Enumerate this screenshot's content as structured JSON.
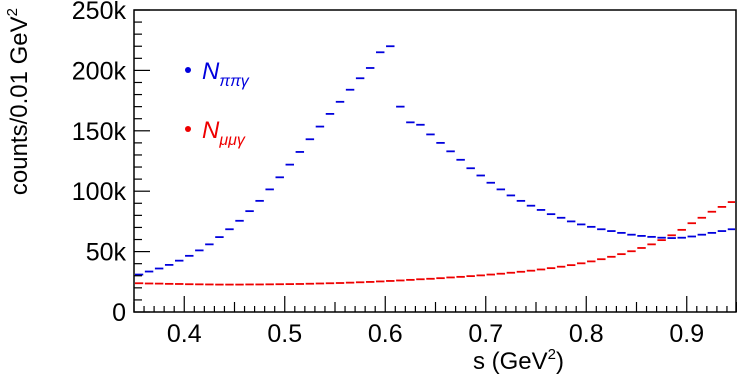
{
  "chart_data": {
    "type": "scatter",
    "xlabel": "s  (GeV",
    "xlabel_exp": "2",
    "xlabel_close": ")",
    "ylabel": "counts/0.01 GeV",
    "ylabel_exp": "2",
    "xlim": [
      0.35,
      0.95
    ],
    "ylim": [
      0,
      250000
    ],
    "bin_width": 0.01,
    "grid": false,
    "legend_position": "top-left",
    "x_ticks": [
      {
        "value": 0.4,
        "label": "0.4"
      },
      {
        "value": 0.5,
        "label": "0.5"
      },
      {
        "value": 0.6,
        "label": "0.6"
      },
      {
        "value": 0.7,
        "label": "0.7"
      },
      {
        "value": 0.8,
        "label": "0.8"
      },
      {
        "value": 0.9,
        "label": "0.9"
      }
    ],
    "y_ticks": [
      {
        "value": 0,
        "label": "0"
      },
      {
        "value": 50000,
        "label": "50k"
      },
      {
        "value": 100000,
        "label": "100k"
      },
      {
        "value": 150000,
        "label": "150k"
      },
      {
        "value": 200000,
        "label": "200k"
      },
      {
        "value": 250000,
        "label": "250k"
      }
    ],
    "series": [
      {
        "name_main": "N",
        "name_sub": "ππγ",
        "color": "#0000dd",
        "x": [
          0.355,
          0.365,
          0.375,
          0.385,
          0.395,
          0.405,
          0.415,
          0.425,
          0.435,
          0.445,
          0.455,
          0.465,
          0.475,
          0.485,
          0.495,
          0.505,
          0.515,
          0.525,
          0.535,
          0.545,
          0.555,
          0.565,
          0.575,
          0.585,
          0.595,
          0.605,
          0.615,
          0.625,
          0.635,
          0.645,
          0.655,
          0.665,
          0.675,
          0.685,
          0.695,
          0.705,
          0.715,
          0.725,
          0.735,
          0.745,
          0.755,
          0.765,
          0.775,
          0.785,
          0.795,
          0.805,
          0.815,
          0.825,
          0.835,
          0.845,
          0.855,
          0.865,
          0.875,
          0.885,
          0.895,
          0.905,
          0.915,
          0.925,
          0.935,
          0.945
        ],
        "y": [
          31000,
          33500,
          36000,
          39000,
          42500,
          46500,
          51000,
          56000,
          62000,
          68500,
          75500,
          83500,
          92000,
          101500,
          111500,
          122000,
          132500,
          143000,
          153500,
          164000,
          174000,
          184000,
          193500,
          202000,
          215000,
          220000,
          170000,
          157000,
          155000,
          147000,
          140000,
          133000,
          126000,
          119000,
          113000,
          107000,
          101500,
          96500,
          92000,
          88000,
          84500,
          81000,
          78000,
          75000,
          72500,
          70500,
          68500,
          67000,
          65500,
          64000,
          63000,
          62200,
          61500,
          61200,
          61500,
          62500,
          64000,
          65500,
          67000,
          68500
        ]
      },
      {
        "name_main": "N",
        "name_sub": "μμγ",
        "color": "#ee0000",
        "x": [
          0.355,
          0.365,
          0.375,
          0.385,
          0.395,
          0.405,
          0.415,
          0.425,
          0.435,
          0.445,
          0.455,
          0.465,
          0.475,
          0.485,
          0.495,
          0.505,
          0.515,
          0.525,
          0.535,
          0.545,
          0.555,
          0.565,
          0.575,
          0.585,
          0.595,
          0.605,
          0.615,
          0.625,
          0.635,
          0.645,
          0.655,
          0.665,
          0.675,
          0.685,
          0.695,
          0.705,
          0.715,
          0.725,
          0.735,
          0.745,
          0.755,
          0.765,
          0.775,
          0.785,
          0.795,
          0.805,
          0.815,
          0.825,
          0.835,
          0.845,
          0.855,
          0.865,
          0.875,
          0.885,
          0.895,
          0.905,
          0.915,
          0.925,
          0.935,
          0.945
        ],
        "y": [
          23800,
          23600,
          23500,
          23300,
          23200,
          23000,
          22900,
          22800,
          22700,
          22700,
          22700,
          22800,
          22800,
          22900,
          23000,
          23100,
          23200,
          23400,
          23600,
          23800,
          24000,
          24300,
          24600,
          24900,
          25300,
          25700,
          26100,
          26600,
          27100,
          27500,
          28000,
          28600,
          29100,
          29700,
          30300,
          31000,
          31700,
          32500,
          33300,
          34200,
          35200,
          36300,
          37500,
          38800,
          40300,
          41900,
          43700,
          45700,
          47900,
          50300,
          53000,
          56000,
          59500,
          63500,
          68000,
          73500,
          78000,
          83000,
          87000,
          91000
        ]
      }
    ]
  }
}
